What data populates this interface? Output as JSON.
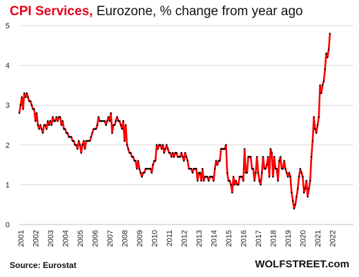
{
  "title": {
    "highlight": "CPI Services,",
    "rest": "Eurozone, % change from year ago"
  },
  "source": "Source: Eurostat",
  "brand": "WOLFSTREET.com",
  "colors": {
    "line": "#ff0000",
    "marker": "#000000",
    "title_highlight": "#e8001c",
    "grid": "#d9d9d9"
  },
  "chart_data": {
    "type": "line",
    "title": "CPI Services, Eurozone, % change from year ago",
    "xlabel": "",
    "ylabel": "",
    "ylim": [
      0,
      5
    ],
    "yticks": [
      0,
      1,
      2,
      3,
      4,
      5
    ],
    "xticks": [
      "2001",
      "2002",
      "2003",
      "2004",
      "2005",
      "2006",
      "2007",
      "2008",
      "2009",
      "2010",
      "2011",
      "2012",
      "2013",
      "2014",
      "2015",
      "2016",
      "2017",
      "2018",
      "2019",
      "2020",
      "2021",
      "2022"
    ],
    "grid": "horizontal",
    "start": "2001-01",
    "frequency": "monthly",
    "series": [
      {
        "name": "",
        "values": [
          2.8,
          3.0,
          3.2,
          2.9,
          3.3,
          3.2,
          3.3,
          3.2,
          3.1,
          3.1,
          3.0,
          2.9,
          2.9,
          2.6,
          2.8,
          2.5,
          2.4,
          2.5,
          2.4,
          2.3,
          2.5,
          2.5,
          2.4,
          2.6,
          2.5,
          2.6,
          2.5,
          2.7,
          2.6,
          2.6,
          2.7,
          2.6,
          2.7,
          2.7,
          2.5,
          2.6,
          2.4,
          2.4,
          2.3,
          2.3,
          2.2,
          2.2,
          2.2,
          2.1,
          2.1,
          2.0,
          2.0,
          1.9,
          2.1,
          2.0,
          1.8,
          2.0,
          2.1,
          1.9,
          2.1,
          2.1,
          2.1,
          2.1,
          2.2,
          2.3,
          2.4,
          2.4,
          2.4,
          2.5,
          2.7,
          2.6,
          2.6,
          2.6,
          2.6,
          2.6,
          2.5,
          2.6,
          2.7,
          2.6,
          2.8,
          2.3,
          2.5,
          2.5,
          2.6,
          2.7,
          2.6,
          2.6,
          2.5,
          2.4,
          2.6,
          2.1,
          2.5,
          2.0,
          1.9,
          1.8,
          1.8,
          1.7,
          1.7,
          1.6,
          1.6,
          1.4,
          1.6,
          1.4,
          1.3,
          1.2,
          1.3,
          1.3,
          1.4,
          1.4,
          1.4,
          1.4,
          1.4,
          1.3,
          1.5,
          1.6,
          1.6,
          2.0,
          1.9,
          2.0,
          2.0,
          1.9,
          2.0,
          1.8,
          1.9,
          2.0,
          1.9,
          1.8,
          1.8,
          1.7,
          1.8,
          1.7,
          1.8,
          1.8,
          1.7,
          1.7,
          1.7,
          1.8,
          1.7,
          1.6,
          1.8,
          1.7,
          1.6,
          1.4,
          1.4,
          1.4,
          1.3,
          1.4,
          1.4,
          1.4,
          1.1,
          1.3,
          1.3,
          1.1,
          1.4,
          1.1,
          1.2,
          1.2,
          1.2,
          1.1,
          1.2,
          1.2,
          1.2,
          1.1,
          1.4,
          1.6,
          1.5,
          1.6,
          1.6,
          1.9,
          1.9,
          1.9,
          1.9,
          2.0,
          1.3,
          1.1,
          1.1,
          1.0,
          0.8,
          1.2,
          1.0,
          1.1,
          1.0,
          1.0,
          1.2,
          1.2,
          1.2,
          1.1,
          1.9,
          1.3,
          1.3,
          1.7,
          1.7,
          1.7,
          1.4,
          1.4,
          1.1,
          1.3,
          1.7,
          1.3,
          1.1,
          1.0,
          1.3,
          1.7,
          1.4,
          1.4,
          1.5,
          1.7,
          1.2,
          1.9,
          1.8,
          1.2,
          1.7,
          1.4,
          1.4,
          1.1,
          1.6,
          1.7,
          1.4,
          1.4,
          1.6,
          1.4,
          1.3,
          1.2,
          1.3,
          1.2,
          0.8,
          0.6,
          0.4,
          0.5,
          0.7,
          0.9,
          1.2,
          1.4,
          1.3,
          1.2,
          0.8,
          0.9,
          1.1,
          0.7,
          0.9,
          1.1,
          1.7,
          2.1,
          2.7,
          2.4,
          2.3,
          2.5,
          2.7,
          3.5,
          3.3,
          3.5,
          3.6,
          3.9,
          4.3,
          4.2,
          4.4,
          4.8
        ]
      }
    ]
  }
}
